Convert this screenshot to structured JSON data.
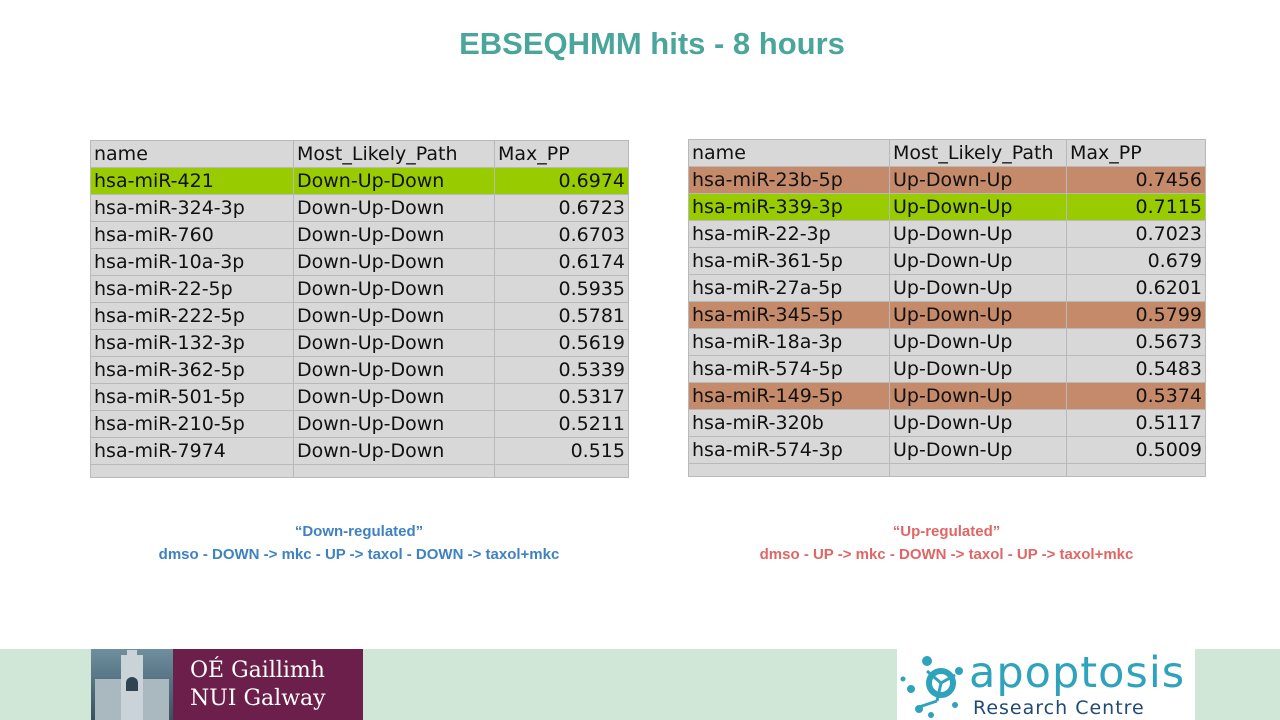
{
  "slide": {
    "title": "EBSEQHMM hits - 8 hours"
  },
  "down_table": {
    "headers": [
      "name",
      "Most_Likely_Path",
      "Max_PP"
    ],
    "rows": [
      [
        "hsa-miR-421",
        "Down-Up-Down",
        "0.6974"
      ],
      [
        "hsa-miR-324-3p",
        "Down-Up-Down",
        "0.6723"
      ],
      [
        "hsa-miR-760",
        "Down-Up-Down",
        "0.6703"
      ],
      [
        "hsa-miR-10a-3p",
        "Down-Up-Down",
        "0.6174"
      ],
      [
        "hsa-miR-22-5p",
        "Down-Up-Down",
        "0.5935"
      ],
      [
        "hsa-miR-222-5p",
        "Down-Up-Down",
        "0.5781"
      ],
      [
        "hsa-miR-132-3p",
        "Down-Up-Down",
        "0.5619"
      ],
      [
        "hsa-miR-362-5p",
        "Down-Up-Down",
        "0.5339"
      ],
      [
        "hsa-miR-501-5p",
        "Down-Up-Down",
        "0.5317"
      ],
      [
        "hsa-miR-210-5p",
        "Down-Up-Down",
        "0.5211"
      ],
      [
        "hsa-miR-7974",
        "Down-Up-Down",
        "0.515"
      ]
    ],
    "highlights": [
      "green",
      "",
      "",
      "",
      "",
      "",
      "",
      "",
      "",
      "",
      ""
    ]
  },
  "up_table": {
    "headers": [
      "name",
      "Most_Likely_Path",
      "Max_PP"
    ],
    "rows": [
      [
        "hsa-miR-23b-5p",
        "Up-Down-Up",
        "0.7456"
      ],
      [
        "hsa-miR-339-3p",
        "Up-Down-Up",
        "0.7115"
      ],
      [
        "hsa-miR-22-3p",
        "Up-Down-Up",
        "0.7023"
      ],
      [
        "hsa-miR-361-5p",
        "Up-Down-Up",
        "0.679"
      ],
      [
        "hsa-miR-27a-5p",
        "Up-Down-Up",
        "0.6201"
      ],
      [
        "hsa-miR-345-5p",
        "Up-Down-Up",
        "0.5799"
      ],
      [
        "hsa-miR-18a-3p",
        "Up-Down-Up",
        "0.5673"
      ],
      [
        "hsa-miR-574-5p",
        "Up-Down-Up",
        "0.5483"
      ],
      [
        "hsa-miR-149-5p",
        "Up-Down-Up",
        "0.5374"
      ],
      [
        "hsa-miR-320b",
        "Up-Down-Up",
        "0.5117"
      ],
      [
        "hsa-miR-574-3p",
        "Up-Down-Up",
        "0.5009"
      ]
    ],
    "highlights": [
      "brown",
      "green",
      "",
      "",
      "",
      "brown",
      "",
      "",
      "brown",
      "",
      ""
    ]
  },
  "captions": {
    "down": {
      "title": "“Down-regulated”",
      "desc": "dmso - DOWN -> mkc - UP -> taxol - DOWN -> taxol+mkc"
    },
    "up": {
      "title": "“Up-regulated”",
      "desc": "dmso - UP -> mkc - DOWN -> taxol - UP -> taxol+mkc"
    }
  },
  "logos": {
    "nui": {
      "line1": "OÉ Gaillimh",
      "line2": "NUI Galway"
    },
    "apoptosis": {
      "word": "apoptosis",
      "sub": "Research Centre"
    }
  },
  "colors": {
    "title": "#4aa59a",
    "highlight_green": "#99cc00",
    "highlight_brown": "#c58a6a",
    "down_caption": "#3f82c2",
    "up_caption": "#e06666",
    "footer": "#d0e6d6",
    "nui_brand": "#6b1f4a",
    "apoptosis_brand": "#2fa3bd"
  }
}
